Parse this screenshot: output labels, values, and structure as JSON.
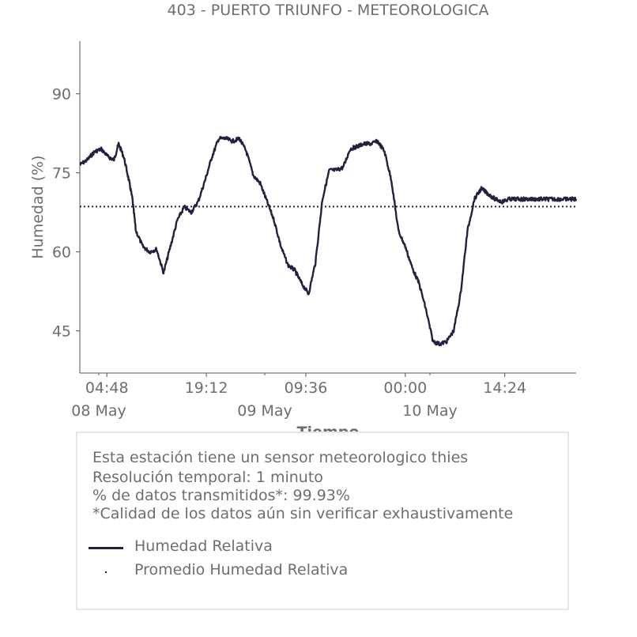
{
  "chart_data": {
    "type": "line",
    "title": "403 - PUERTO TRIUNFO - METEOROLOGICA",
    "xlabel": "Tiempo",
    "ylabel": "Humedad (%)",
    "ylim": [
      37,
      100
    ],
    "xlim": [
      "2024-05-08 00:53",
      "2024-05-11 00:44"
    ],
    "yticks": [
      45,
      60,
      75,
      90
    ],
    "xticks_time": [
      "04:48",
      "19:12",
      "09:36",
      "00:00",
      "14:24"
    ],
    "xticks_date": [
      "08 May",
      "09 May",
      "10 May"
    ],
    "grid": false,
    "mean_value": 68.6,
    "series": [
      {
        "name": "Humedad Relativa",
        "color": "#22223f",
        "style": "solid",
        "x": [
          "2024-05-08 00:53",
          "2024-05-08 02:00",
          "2024-05-08 03:00",
          "2024-05-08 04:00",
          "2024-05-08 05:00",
          "2024-05-08 05:50",
          "2024-05-08 06:30",
          "2024-05-08 07:15",
          "2024-05-08 08:00",
          "2024-05-08 08:30",
          "2024-05-08 09:00",
          "2024-05-08 10:00",
          "2024-05-08 11:00",
          "2024-05-08 12:00",
          "2024-05-08 13:00",
          "2024-05-08 14:00",
          "2024-05-08 15:00",
          "2024-05-08 16:00",
          "2024-05-08 17:00",
          "2024-05-08 18:00",
          "2024-05-08 19:00",
          "2024-05-08 20:00",
          "2024-05-08 21:00",
          "2024-05-08 22:00",
          "2024-05-08 23:00",
          "2024-05-09 00:00",
          "2024-05-09 01:00",
          "2024-05-09 02:00",
          "2024-05-09 03:00",
          "2024-05-09 04:00",
          "2024-05-09 05:00",
          "2024-05-09 06:00",
          "2024-05-09 07:00",
          "2024-05-09 08:00",
          "2024-05-09 09:00",
          "2024-05-09 10:00",
          "2024-05-09 11:00",
          "2024-05-09 12:00",
          "2024-05-09 13:00",
          "2024-05-09 14:00",
          "2024-05-09 15:00",
          "2024-05-09 16:00",
          "2024-05-09 17:00",
          "2024-05-09 18:00",
          "2024-05-09 19:00",
          "2024-05-09 20:00",
          "2024-05-09 21:00",
          "2024-05-09 22:00",
          "2024-05-09 23:00",
          "2024-05-10 00:00",
          "2024-05-10 01:00",
          "2024-05-10 02:00",
          "2024-05-10 03:00",
          "2024-05-10 04:00",
          "2024-05-10 05:00",
          "2024-05-10 06:00",
          "2024-05-10 07:00",
          "2024-05-10 08:00",
          "2024-05-10 09:00",
          "2024-05-10 10:00",
          "2024-05-10 11:00",
          "2024-05-10 12:00",
          "2024-05-10 13:00",
          "2024-05-10 14:00",
          "2024-05-10 15:00",
          "2024-05-10 16:00",
          "2024-05-10 17:00",
          "2024-05-10 18:00",
          "2024-05-10 19:00",
          "2024-05-10 20:00",
          "2024-05-10 21:00",
          "2024-05-10 22:00",
          "2024-05-10 23:00",
          "2024-05-11 00:00",
          "2024-05-11 00:44"
        ],
        "y": [
          76.5,
          77.5,
          79.0,
          79.5,
          78.0,
          77.5,
          80.5,
          78.0,
          73.5,
          70.0,
          64.0,
          61.0,
          60.0,
          60.5,
          56.0,
          61.0,
          66.0,
          68.5,
          67.5,
          69.5,
          73.5,
          78.0,
          81.5,
          81.5,
          81.0,
          81.5,
          79.0,
          74.5,
          73.0,
          69.5,
          66.0,
          61.0,
          57.5,
          56.5,
          54.0,
          52.0,
          58.0,
          70.0,
          75.5,
          75.5,
          76.0,
          79.5,
          80.0,
          80.5,
          80.5,
          81.0,
          79.0,
          73.5,
          64.0,
          61.0,
          57.0,
          54.0,
          49.0,
          43.0,
          42.5,
          43.0,
          45.0,
          52.0,
          64.0,
          70.0,
          72.0,
          71.0,
          70.0,
          69.5,
          70.0,
          70.0,
          70.0,
          70.0,
          70.0,
          70.0,
          70.0,
          70.0,
          70.0,
          70.0,
          70.0
        ]
      },
      {
        "name": "Promedio Humedad Relativa",
        "color": "#22223f",
        "style": "dotted"
      }
    ]
  },
  "info": {
    "line1": "Esta estación tiene un sensor meteorologico thies",
    "line2": "Resolución temporal: 1 minuto",
    "line3": "% de datos transmitidos*: 99.93%",
    "line4": "*Calidad de los datos aún sin verificar exhaustivamente"
  },
  "legend": {
    "item1": "Humedad Relativa",
    "item2": "Promedio Humedad Relativa"
  }
}
